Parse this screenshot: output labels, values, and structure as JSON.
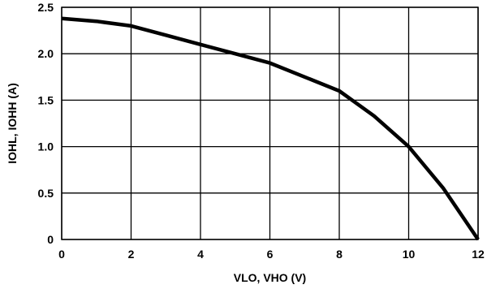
{
  "chart_data": {
    "type": "line",
    "title": "",
    "xlabel": "VLO, VHO (V)",
    "ylabel": "IOHL, IOHH (A)",
    "xlim": [
      0,
      12
    ],
    "ylim": [
      0,
      2.5
    ],
    "x_ticks": [
      0,
      2,
      4,
      6,
      8,
      10,
      12
    ],
    "x_tick_labels": [
      "0",
      "2",
      "4",
      "6",
      "8",
      "10",
      "12"
    ],
    "y_ticks": [
      0,
      0.5,
      1.0,
      1.5,
      2.0,
      2.5
    ],
    "y_tick_labels": [
      "0",
      "0.5",
      "1.0",
      "1.5",
      "2.0",
      "2.5"
    ],
    "grid": true,
    "legend": "none",
    "line_color": "#000000",
    "series": [
      {
        "x": [
          0,
          1,
          2,
          3,
          4,
          5,
          6,
          7,
          8,
          9,
          10,
          11,
          12
        ],
        "values": [
          2.38,
          2.35,
          2.3,
          2.2,
          2.1,
          2.0,
          1.9,
          1.75,
          1.6,
          1.33,
          1.0,
          0.55,
          0.0
        ]
      }
    ]
  }
}
